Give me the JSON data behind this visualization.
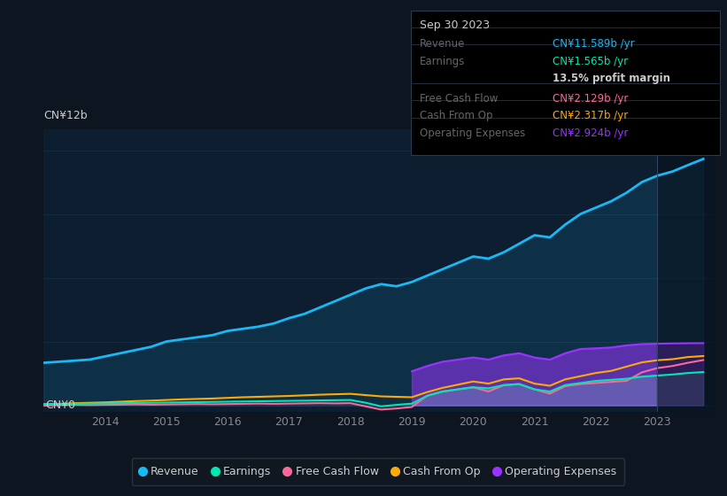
{
  "bg_color": "#0d1520",
  "plot_bg_color": "#0d1e30",
  "grid_color": "#1a2e45",
  "ylabel": "CN¥12b",
  "y0label": "CN¥0",
  "series_colors": {
    "Revenue": "#1ab8f5",
    "Earnings": "#00e8b0",
    "FreeCashFlow": "#ff6699",
    "CashFromOp": "#ffaa00",
    "OperatingExpenses": "#9933ff"
  },
  "legend_labels": [
    "Revenue",
    "Earnings",
    "Free Cash Flow",
    "Cash From Op",
    "Operating Expenses"
  ],
  "info_box": {
    "date": "Sep 30 2023",
    "revenue_label": "Revenue",
    "revenue_value": "CN¥11.589b /yr",
    "revenue_color": "#1ab8f5",
    "earnings_label": "Earnings",
    "earnings_value": "CN¥1.565b /yr",
    "earnings_color": "#00e8b0",
    "profit_margin": "13.5% profit margin",
    "fcf_label": "Free Cash Flow",
    "fcf_value": "CN¥2.129b /yr",
    "fcf_color": "#ff6699",
    "cashop_label": "Cash From Op",
    "cashop_value": "CN¥2.317b /yr",
    "cashop_color": "#ffaa00",
    "opex_label": "Operating Expenses",
    "opex_value": "CN¥2.924b /yr",
    "opex_color": "#9933ff"
  },
  "years": [
    2013.0,
    2013.25,
    2013.5,
    2013.75,
    2014.0,
    2014.25,
    2014.5,
    2014.75,
    2015.0,
    2015.25,
    2015.5,
    2015.75,
    2016.0,
    2016.25,
    2016.5,
    2016.75,
    2017.0,
    2017.25,
    2017.5,
    2017.75,
    2018.0,
    2018.25,
    2018.5,
    2018.75,
    2019.0,
    2019.25,
    2019.5,
    2019.75,
    2020.0,
    2020.25,
    2020.5,
    2020.75,
    2021.0,
    2021.25,
    2021.5,
    2021.75,
    2022.0,
    2022.25,
    2022.5,
    2022.75,
    2023.0,
    2023.25,
    2023.5,
    2023.75
  ],
  "revenue": [
    2.0,
    2.05,
    2.1,
    2.15,
    2.3,
    2.45,
    2.6,
    2.75,
    3.0,
    3.1,
    3.2,
    3.3,
    3.5,
    3.6,
    3.7,
    3.85,
    4.1,
    4.3,
    4.6,
    4.9,
    5.2,
    5.5,
    5.7,
    5.6,
    5.8,
    6.1,
    6.4,
    6.7,
    7.0,
    6.9,
    7.2,
    7.6,
    8.0,
    7.9,
    8.5,
    9.0,
    9.3,
    9.6,
    10.0,
    10.5,
    10.8,
    11.0,
    11.3,
    11.589
  ],
  "earnings": [
    0.05,
    0.06,
    0.07,
    0.08,
    0.09,
    0.1,
    0.11,
    0.12,
    0.13,
    0.14,
    0.15,
    0.16,
    0.17,
    0.18,
    0.19,
    0.2,
    0.21,
    0.22,
    0.23,
    0.24,
    0.25,
    0.12,
    -0.05,
    0.02,
    0.08,
    0.45,
    0.65,
    0.75,
    0.85,
    0.8,
    0.95,
    1.0,
    0.75,
    0.65,
    0.95,
    1.05,
    1.15,
    1.2,
    1.25,
    1.35,
    1.4,
    1.45,
    1.52,
    1.565
  ],
  "free_cash_flow": [
    -0.02,
    0.01,
    0.02,
    0.01,
    0.02,
    0.03,
    0.04,
    0.03,
    0.04,
    0.05,
    0.06,
    0.05,
    0.06,
    0.07,
    0.08,
    0.07,
    0.08,
    0.09,
    0.1,
    0.09,
    0.1,
    -0.05,
    -0.2,
    -0.15,
    -0.08,
    0.45,
    0.65,
    0.75,
    0.85,
    0.65,
    0.95,
    1.0,
    0.75,
    0.55,
    0.9,
    1.0,
    1.05,
    1.1,
    1.15,
    1.55,
    1.75,
    1.85,
    2.0,
    2.129
  ],
  "cash_from_op": [
    0.05,
    0.07,
    0.1,
    0.12,
    0.14,
    0.17,
    0.2,
    0.22,
    0.25,
    0.28,
    0.3,
    0.32,
    0.35,
    0.38,
    0.4,
    0.42,
    0.44,
    0.47,
    0.5,
    0.52,
    0.54,
    0.48,
    0.42,
    0.4,
    0.38,
    0.62,
    0.82,
    0.97,
    1.12,
    1.02,
    1.22,
    1.27,
    1.02,
    0.92,
    1.22,
    1.37,
    1.52,
    1.62,
    1.82,
    2.02,
    2.12,
    2.17,
    2.27,
    2.317
  ],
  "operating_expenses": [
    0.0,
    0.0,
    0.0,
    0.0,
    0.0,
    0.0,
    0.0,
    0.0,
    0.0,
    0.0,
    0.0,
    0.0,
    0.0,
    0.0,
    0.0,
    0.0,
    0.0,
    0.0,
    0.0,
    0.0,
    0.0,
    0.0,
    0.0,
    0.0,
    1.6,
    1.85,
    2.05,
    2.15,
    2.25,
    2.15,
    2.35,
    2.45,
    2.25,
    2.15,
    2.45,
    2.65,
    2.68,
    2.72,
    2.82,
    2.88,
    2.9,
    2.91,
    2.92,
    2.924
  ],
  "xmin": 2013.0,
  "xmax": 2023.9,
  "ymin": -0.3,
  "ymax": 13.0,
  "xtick_years": [
    2014,
    2015,
    2016,
    2017,
    2018,
    2019,
    2020,
    2021,
    2022,
    2023
  ],
  "highlight_start": 2023.0
}
